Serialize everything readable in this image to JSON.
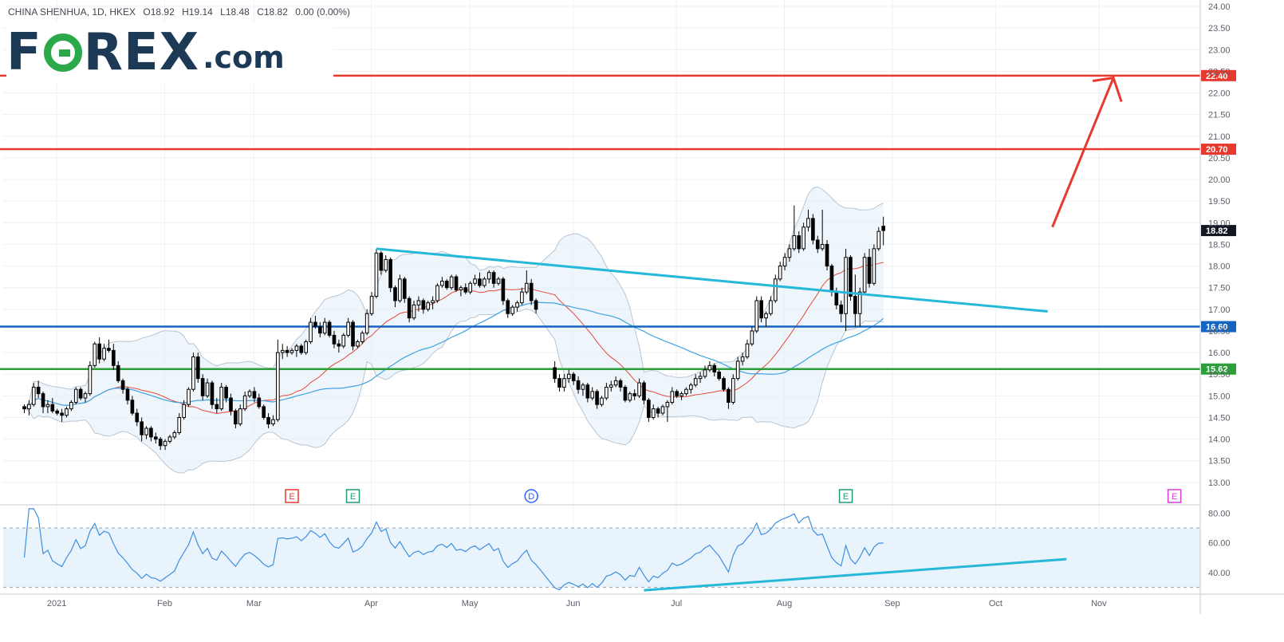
{
  "header": {
    "symbol": "CHINA SHENHUA, 1D, HKEX",
    "open": "O18.92",
    "high": "H19.14",
    "low": "L18.48",
    "close": "C18.82",
    "change": "0.00 (0.00%)"
  },
  "logo": {
    "part1": "F",
    "part2": "REX",
    "suffix": ".com"
  },
  "chart_data": {
    "type": "candlestick",
    "title": "CHINA SHENHUA, 1D, HKEX",
    "price_axis": {
      "min": 12.5,
      "max": 24.0,
      "ticks": [
        "13.00",
        "13.50",
        "14.00",
        "14.50",
        "15.00",
        "15.50",
        "16.00",
        "16.50",
        "17.00",
        "17.50",
        "18.00",
        "18.50",
        "19.00",
        "19.50",
        "20.00",
        "20.50",
        "21.00",
        "21.50",
        "22.00",
        "22.50",
        "23.00",
        "23.50",
        "24.00"
      ]
    },
    "x_axis": {
      "labels": [
        {
          "label": "2021",
          "index": 12
        },
        {
          "label": "Feb",
          "index": 35
        },
        {
          "label": "Mar",
          "index": 54
        },
        {
          "label": "Apr",
          "index": 79
        },
        {
          "label": "May",
          "index": 100
        },
        {
          "label": "Jun",
          "index": 122
        },
        {
          "label": "Jul",
          "index": 144
        },
        {
          "label": "Aug",
          "index": 167
        },
        {
          "label": "Sep",
          "index": 190
        },
        {
          "label": "Oct",
          "index": 212
        },
        {
          "label": "Nov",
          "index": 234
        }
      ],
      "total_slots": 255
    },
    "candles": [
      [
        14.75,
        14.8,
        14.6,
        14.7
      ],
      [
        14.7,
        14.9,
        14.55,
        14.8
      ],
      [
        14.8,
        15.3,
        14.75,
        15.2
      ],
      [
        15.2,
        15.35,
        14.95,
        15.05
      ],
      [
        15.05,
        15.1,
        14.6,
        14.75
      ],
      [
        14.75,
        14.9,
        14.6,
        14.8
      ],
      [
        14.8,
        14.95,
        14.6,
        14.65
      ],
      [
        14.65,
        14.7,
        14.55,
        14.6
      ],
      [
        14.6,
        14.7,
        14.4,
        14.55
      ],
      [
        14.55,
        14.75,
        14.5,
        14.7
      ],
      [
        14.7,
        14.9,
        14.65,
        14.85
      ],
      [
        14.85,
        15.2,
        14.8,
        15.15
      ],
      [
        15.15,
        15.2,
        14.9,
        14.95
      ],
      [
        14.95,
        15.1,
        14.85,
        15.05
      ],
      [
        15.05,
        15.8,
        15.0,
        15.7
      ],
      [
        15.7,
        16.25,
        15.65,
        16.2
      ],
      [
        16.2,
        16.35,
        15.75,
        15.85
      ],
      [
        15.85,
        16.2,
        15.8,
        16.1
      ],
      [
        16.1,
        16.3,
        16.0,
        16.05
      ],
      [
        16.05,
        16.2,
        15.6,
        15.7
      ],
      [
        15.7,
        15.8,
        15.3,
        15.35
      ],
      [
        15.35,
        15.4,
        15.05,
        15.15
      ],
      [
        15.15,
        15.2,
        14.8,
        14.9
      ],
      [
        14.9,
        15.0,
        14.55,
        14.6
      ],
      [
        14.6,
        14.7,
        14.3,
        14.4
      ],
      [
        14.4,
        14.5,
        13.95,
        14.1
      ],
      [
        14.1,
        14.3,
        14.0,
        14.25
      ],
      [
        14.25,
        14.3,
        13.95,
        14.05
      ],
      [
        14.05,
        14.15,
        13.9,
        14.0
      ],
      [
        14.0,
        14.05,
        13.75,
        13.85
      ],
      [
        13.85,
        14.0,
        13.75,
        13.95
      ],
      [
        13.95,
        14.1,
        13.9,
        14.05
      ],
      [
        14.05,
        14.2,
        14.0,
        14.15
      ],
      [
        14.15,
        14.6,
        14.1,
        14.5
      ],
      [
        14.5,
        14.9,
        14.45,
        14.8
      ],
      [
        14.8,
        15.2,
        14.75,
        15.15
      ],
      [
        15.15,
        16.0,
        15.1,
        15.9
      ],
      [
        15.9,
        16.0,
        15.3,
        15.4
      ],
      [
        15.4,
        15.5,
        14.9,
        15.0
      ],
      [
        15.0,
        15.4,
        14.95,
        15.3
      ],
      [
        15.3,
        15.35,
        14.7,
        14.8
      ],
      [
        14.8,
        14.95,
        14.6,
        14.7
      ],
      [
        14.7,
        15.3,
        14.65,
        15.2
      ],
      [
        15.2,
        15.25,
        14.85,
        14.95
      ],
      [
        14.95,
        15.05,
        14.55,
        14.65
      ],
      [
        14.65,
        14.7,
        14.25,
        14.35
      ],
      [
        14.35,
        14.8,
        14.3,
        14.7
      ],
      [
        14.7,
        15.1,
        14.65,
        15.0
      ],
      [
        15.0,
        15.15,
        14.95,
        15.1
      ],
      [
        15.1,
        15.2,
        14.85,
        14.95
      ],
      [
        14.95,
        15.05,
        14.7,
        14.75
      ],
      [
        14.75,
        14.8,
        14.45,
        14.5
      ],
      [
        14.5,
        14.6,
        14.25,
        14.35
      ],
      [
        14.35,
        14.55,
        14.3,
        14.45
      ],
      [
        14.45,
        16.3,
        14.4,
        16.0
      ],
      [
        16.0,
        16.2,
        15.85,
        16.05
      ],
      [
        16.05,
        16.15,
        15.9,
        16.0
      ],
      [
        16.0,
        16.1,
        15.95,
        16.05
      ],
      [
        16.05,
        16.2,
        15.9,
        16.15
      ],
      [
        16.15,
        16.2,
        15.95,
        16.0
      ],
      [
        16.0,
        16.3,
        15.95,
        16.25
      ],
      [
        16.25,
        16.8,
        16.2,
        16.7
      ],
      [
        16.7,
        16.85,
        16.55,
        16.6
      ],
      [
        16.6,
        16.7,
        16.35,
        16.45
      ],
      [
        16.45,
        16.8,
        16.4,
        16.7
      ],
      [
        16.7,
        16.75,
        16.35,
        16.4
      ],
      [
        16.4,
        16.5,
        16.1,
        16.2
      ],
      [
        16.2,
        16.3,
        16.0,
        16.15
      ],
      [
        16.15,
        16.45,
        16.1,
        16.4
      ],
      [
        16.4,
        16.8,
        16.35,
        16.7
      ],
      [
        16.7,
        16.75,
        16.05,
        16.15
      ],
      [
        16.15,
        16.3,
        16.1,
        16.25
      ],
      [
        16.25,
        16.5,
        16.2,
        16.45
      ],
      [
        16.45,
        17.0,
        16.4,
        16.9
      ],
      [
        16.9,
        17.4,
        16.85,
        17.3
      ],
      [
        17.3,
        18.4,
        17.25,
        18.3
      ],
      [
        18.3,
        18.35,
        17.8,
        17.9
      ],
      [
        17.9,
        18.25,
        17.85,
        18.15
      ],
      [
        18.15,
        18.2,
        17.4,
        17.5
      ],
      [
        17.5,
        17.55,
        17.05,
        17.2
      ],
      [
        17.2,
        17.8,
        17.15,
        17.7
      ],
      [
        17.7,
        17.75,
        17.15,
        17.25
      ],
      [
        17.25,
        17.3,
        16.7,
        16.8
      ],
      [
        16.8,
        17.2,
        16.75,
        17.1
      ],
      [
        17.1,
        17.3,
        16.95,
        17.2
      ],
      [
        17.2,
        17.25,
        16.9,
        17.0
      ],
      [
        17.0,
        17.2,
        16.95,
        17.15
      ],
      [
        17.15,
        17.3,
        17.0,
        17.2
      ],
      [
        17.2,
        17.6,
        17.15,
        17.55
      ],
      [
        17.55,
        17.75,
        17.5,
        17.65
      ],
      [
        17.65,
        17.7,
        17.45,
        17.5
      ],
      [
        17.5,
        17.8,
        17.45,
        17.75
      ],
      [
        17.75,
        17.8,
        17.4,
        17.45
      ],
      [
        17.45,
        17.55,
        17.3,
        17.5
      ],
      [
        17.5,
        17.6,
        17.35,
        17.4
      ],
      [
        17.4,
        17.65,
        17.35,
        17.6
      ],
      [
        17.6,
        17.8,
        17.55,
        17.7
      ],
      [
        17.7,
        17.85,
        17.5,
        17.55
      ],
      [
        17.55,
        17.75,
        17.5,
        17.7
      ],
      [
        17.7,
        17.9,
        17.6,
        17.85
      ],
      [
        17.85,
        17.9,
        17.5,
        17.6
      ],
      [
        17.6,
        17.75,
        17.55,
        17.7
      ],
      [
        17.7,
        17.75,
        17.1,
        17.2
      ],
      [
        17.2,
        17.25,
        16.8,
        16.9
      ],
      [
        16.9,
        17.1,
        16.85,
        17.05
      ],
      [
        17.05,
        17.2,
        16.95,
        17.15
      ],
      [
        17.15,
        17.5,
        17.1,
        17.4
      ],
      [
        17.4,
        17.9,
        17.35,
        17.6
      ],
      [
        17.6,
        17.7,
        17.1,
        17.2
      ],
      [
        17.2,
        17.25,
        16.9,
        17.0
      ],
      [
        15.65,
        15.8,
        15.3,
        15.4
      ],
      [
        15.4,
        15.5,
        15.1,
        15.2
      ],
      [
        15.2,
        15.5,
        15.1,
        15.4
      ],
      [
        15.4,
        15.6,
        15.3,
        15.5
      ],
      [
        15.5,
        15.55,
        15.25,
        15.35
      ],
      [
        15.35,
        15.45,
        15.05,
        15.15
      ],
      [
        15.15,
        15.3,
        15.0,
        15.25
      ],
      [
        15.25,
        15.3,
        14.85,
        14.95
      ],
      [
        14.95,
        15.2,
        14.9,
        15.1
      ],
      [
        15.1,
        15.15,
        14.7,
        14.8
      ],
      [
        14.8,
        15.0,
        14.75,
        14.95
      ],
      [
        14.95,
        15.3,
        14.9,
        15.2
      ],
      [
        15.2,
        15.35,
        15.1,
        15.25
      ],
      [
        15.25,
        15.45,
        15.2,
        15.35
      ],
      [
        15.35,
        15.4,
        15.1,
        15.2
      ],
      [
        15.2,
        15.25,
        14.85,
        14.9
      ],
      [
        14.9,
        15.1,
        14.85,
        15.05
      ],
      [
        15.05,
        15.15,
        14.9,
        15.0
      ],
      [
        15.0,
        15.4,
        14.95,
        15.3
      ],
      [
        15.3,
        15.35,
        14.8,
        14.9
      ],
      [
        14.9,
        14.95,
        14.4,
        14.5
      ],
      [
        14.5,
        14.8,
        14.45,
        14.7
      ],
      [
        14.7,
        14.75,
        14.5,
        14.6
      ],
      [
        14.6,
        14.8,
        14.55,
        14.75
      ],
      [
        14.75,
        14.9,
        14.4,
        14.85
      ],
      [
        14.85,
        15.2,
        14.8,
        15.1
      ],
      [
        15.1,
        15.15,
        14.95,
        15.0
      ],
      [
        15.0,
        15.1,
        14.9,
        15.05
      ],
      [
        15.05,
        15.2,
        15.0,
        15.15
      ],
      [
        15.15,
        15.3,
        15.05,
        15.25
      ],
      [
        15.25,
        15.5,
        15.2,
        15.4
      ],
      [
        15.4,
        15.55,
        15.3,
        15.45
      ],
      [
        15.45,
        15.7,
        15.4,
        15.6
      ],
      [
        15.6,
        15.8,
        15.55,
        15.7
      ],
      [
        15.7,
        15.75,
        15.45,
        15.55
      ],
      [
        15.55,
        15.6,
        15.35,
        15.4
      ],
      [
        15.4,
        15.45,
        15.1,
        15.15
      ],
      [
        15.15,
        15.2,
        14.7,
        14.85
      ],
      [
        14.85,
        15.5,
        14.8,
        15.4
      ],
      [
        15.4,
        15.9,
        15.35,
        15.8
      ],
      [
        15.8,
        16.0,
        15.7,
        15.9
      ],
      [
        15.9,
        16.3,
        15.85,
        16.2
      ],
      [
        16.2,
        16.6,
        16.15,
        16.5
      ],
      [
        16.5,
        17.3,
        16.45,
        17.2
      ],
      [
        17.2,
        17.3,
        16.7,
        16.8
      ],
      [
        16.8,
        16.95,
        16.6,
        16.9
      ],
      [
        16.9,
        17.3,
        16.85,
        17.2
      ],
      [
        17.2,
        17.8,
        17.15,
        17.7
      ],
      [
        17.7,
        18.1,
        17.65,
        18.0
      ],
      [
        18.0,
        18.3,
        17.9,
        18.2
      ],
      [
        18.2,
        18.5,
        18.1,
        18.4
      ],
      [
        18.4,
        19.4,
        18.35,
        18.7
      ],
      [
        18.7,
        18.8,
        18.3,
        18.4
      ],
      [
        18.4,
        19.0,
        18.35,
        18.9
      ],
      [
        18.9,
        19.3,
        18.8,
        19.1
      ],
      [
        19.1,
        19.2,
        18.5,
        18.6
      ],
      [
        18.6,
        18.7,
        18.3,
        18.4
      ],
      [
        18.4,
        19.3,
        18.35,
        18.5
      ],
      [
        18.5,
        18.6,
        17.9,
        18.0
      ],
      [
        18.0,
        18.05,
        17.3,
        17.4
      ],
      [
        17.4,
        17.5,
        17.0,
        17.1
      ],
      [
        17.1,
        17.2,
        16.7,
        16.9
      ],
      [
        16.9,
        18.4,
        16.5,
        18.2
      ],
      [
        18.2,
        18.25,
        17.2,
        17.3
      ],
      [
        17.3,
        17.8,
        16.6,
        16.9
      ],
      [
        16.9,
        17.5,
        16.6,
        17.4
      ],
      [
        17.4,
        18.3,
        17.35,
        18.2
      ],
      [
        18.2,
        18.4,
        17.5,
        17.6
      ],
      [
        17.6,
        18.5,
        17.55,
        18.4
      ],
      [
        18.4,
        18.9,
        18.35,
        18.8
      ],
      [
        18.92,
        19.14,
        18.48,
        18.82
      ]
    ],
    "start_index": 0,
    "gap_after_index": 109,
    "gap_slots": 3,
    "moving_averages": [
      {
        "name": "MA20",
        "color": "#e5483b"
      },
      {
        "name": "MA50",
        "color": "#3fa3e2"
      }
    ],
    "horizontal_levels": [
      {
        "value": 22.4,
        "label": "22.40",
        "color": "#e8392e"
      },
      {
        "value": 20.7,
        "label": "20.70",
        "color": "#e8392e"
      },
      {
        "value": 16.6,
        "label": "16.60",
        "color": "#1565c0"
      },
      {
        "value": 15.62,
        "label": "15.62",
        "color": "#2e9e3b"
      }
    ],
    "last_price": {
      "value": 18.82,
      "label": "18.82"
    },
    "trendline": {
      "start": {
        "index": 75,
        "value": 18.4
      },
      "end": {
        "index": 218,
        "value": 16.95
      },
      "color": "#26b8d8"
    },
    "projection_arrow": {
      "start": {
        "index": 219,
        "value": 18.9
      },
      "end": {
        "index": 232,
        "value": 22.35
      },
      "color": "#e8392e"
    },
    "events": [
      {
        "index": 57,
        "letter": "E",
        "color": "#e8392e"
      },
      {
        "index": 70,
        "letter": "E",
        "color": "#1f9b7a"
      },
      {
        "index": 108,
        "letter": "D",
        "color": "#2962ff"
      },
      {
        "index": 175,
        "letter": "E",
        "color": "#1f9b7a"
      },
      {
        "index": 245,
        "letter": "E",
        "color": "#d63fd6"
      }
    ],
    "rsi": {
      "ticks": [
        "40.00",
        "60.00",
        "80.00"
      ],
      "min": 27,
      "max": 84,
      "upper": 70,
      "lower": 30,
      "trendline": {
        "start": {
          "index": 132,
          "value": 28
        },
        "end": {
          "index": 222,
          "value": 49
        },
        "color": "#26b8d8"
      }
    },
    "grid": true
  }
}
